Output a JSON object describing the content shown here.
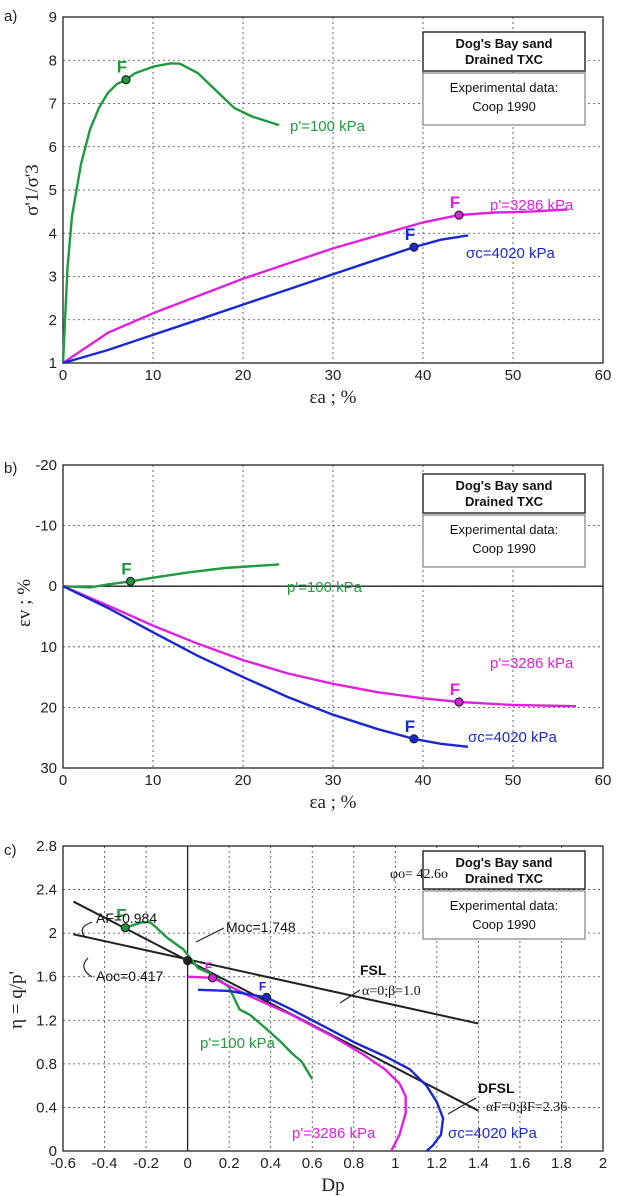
{
  "chart_data": [
    {
      "panel": "a)",
      "type": "line",
      "xlabel": "εa ; %",
      "ylabel": "σ'1/σ'3",
      "xlim": [
        0,
        60
      ],
      "ylim": [
        1,
        9
      ],
      "xticks": [
        0,
        10,
        20,
        30,
        40,
        50,
        60
      ],
      "yticks": [
        1,
        2,
        3,
        4,
        5,
        6,
        7,
        8,
        9
      ],
      "grid": true,
      "box_title": [
        "Dog's Bay sand",
        "Drained TXC"
      ],
      "box_sub": [
        "Experimental data:",
        "Coop 1990"
      ],
      "series": [
        {
          "name": "p'=100 kPa",
          "color": "#1f9a3e",
          "points": [
            [
              0,
              1
            ],
            [
              0.5,
              3.2
            ],
            [
              1,
              4.4
            ],
            [
              2,
              5.6
            ],
            [
              3,
              6.4
            ],
            [
              4,
              6.9
            ],
            [
              5,
              7.25
            ],
            [
              6,
              7.45
            ],
            [
              7,
              7.55
            ],
            [
              8,
              7.7
            ],
            [
              10,
              7.85
            ],
            [
              12,
              7.93
            ],
            [
              13,
              7.92
            ],
            [
              15,
              7.7
            ],
            [
              17,
              7.3
            ],
            [
              19,
              6.9
            ],
            [
              21,
              6.7
            ],
            [
              24,
              6.5
            ]
          ],
          "failure": [
            7,
            7.55
          ]
        },
        {
          "name": "p'=3286 kPa",
          "color": "#e020e0",
          "points": [
            [
              0,
              1
            ],
            [
              5,
              1.7
            ],
            [
              10,
              2.15
            ],
            [
              15,
              2.55
            ],
            [
              20,
              2.95
            ],
            [
              25,
              3.3
            ],
            [
              30,
              3.65
            ],
            [
              35,
              3.95
            ],
            [
              40,
              4.25
            ],
            [
              44,
              4.42
            ],
            [
              48,
              4.48
            ],
            [
              52,
              4.5
            ],
            [
              56,
              4.55
            ]
          ],
          "failure": [
            44,
            4.42
          ]
        },
        {
          "name": "σc=4020 kPa",
          "color": "#1a28d0",
          "points": [
            [
              0,
              1
            ],
            [
              5,
              1.3
            ],
            [
              10,
              1.65
            ],
            [
              15,
              2.0
            ],
            [
              20,
              2.35
            ],
            [
              25,
              2.7
            ],
            [
              30,
              3.05
            ],
            [
              35,
              3.4
            ],
            [
              39,
              3.68
            ],
            [
              42,
              3.85
            ],
            [
              45,
              3.95
            ]
          ],
          "failure": [
            39,
            3.68
          ]
        }
      ],
      "series_labels": [
        "p'=100 kPa",
        "p'=3286 kPa",
        "σc=4020 kPa"
      ]
    },
    {
      "panel": "b)",
      "type": "line",
      "xlabel": "εa ; %",
      "ylabel": "εv ; %",
      "xlim": [
        0,
        60
      ],
      "ylim": [
        -20,
        30
      ],
      "y_inverted": true,
      "xticks": [
        0,
        10,
        20,
        30,
        40,
        50,
        60
      ],
      "yticks": [
        -20,
        -10,
        0,
        10,
        20,
        30
      ],
      "grid": true,
      "box_title": [
        "Dog's Bay sand",
        "Drained TXC"
      ],
      "box_sub": [
        "Experimental data:",
        "Coop 1990"
      ],
      "series": [
        {
          "name": "p'=100 kPa",
          "color": "#1f9a3e",
          "points": [
            [
              0,
              0
            ],
            [
              3,
              0.2
            ],
            [
              5,
              -0.3
            ],
            [
              7.5,
              -0.8
            ],
            [
              10,
              -1.4
            ],
            [
              14,
              -2.3
            ],
            [
              18,
              -3.0
            ],
            [
              24,
              -3.6
            ]
          ],
          "failure": [
            7.5,
            -0.8
          ]
        },
        {
          "name": "p'=3286 kPa",
          "color": "#e020e0",
          "points": [
            [
              0,
              0
            ],
            [
              5,
              3.2
            ],
            [
              10,
              6.5
            ],
            [
              15,
              9.5
            ],
            [
              20,
              12.2
            ],
            [
              25,
              14.4
            ],
            [
              30,
              16.1
            ],
            [
              35,
              17.5
            ],
            [
              40,
              18.5
            ],
            [
              44,
              19.1
            ],
            [
              50,
              19.6
            ],
            [
              57,
              19.8
            ]
          ],
          "failure": [
            44,
            19.1
          ]
        },
        {
          "name": "σc=4020 kPa",
          "color": "#1a28d0",
          "points": [
            [
              0,
              0
            ],
            [
              5,
              3.6
            ],
            [
              10,
              7.6
            ],
            [
              15,
              11.5
            ],
            [
              20,
              15.0
            ],
            [
              25,
              18.3
            ],
            [
              30,
              21.2
            ],
            [
              35,
              23.6
            ],
            [
              39,
              25.2
            ],
            [
              42,
              26.0
            ],
            [
              45,
              26.5
            ]
          ],
          "failure": [
            39,
            25.2
          ]
        }
      ],
      "series_labels": [
        "p'=100 kPa",
        "p'=3286 kPa",
        "σc=4020 kPa"
      ]
    },
    {
      "panel": "c)",
      "type": "line",
      "xlabel": "Dp",
      "ylabel": "η = q/p'",
      "xlim": [
        -0.6,
        2.0
      ],
      "ylim": [
        0,
        2.8
      ],
      "xticks": [
        -0.6,
        -0.4,
        -0.2,
        0,
        0.2,
        0.4,
        0.6,
        0.8,
        1.0,
        1.2,
        1.4,
        1.6,
        1.8,
        2.0
      ],
      "yticks": [
        0,
        0.4,
        0.8,
        1.2,
        1.6,
        2.0,
        2.4,
        2.8
      ],
      "grid": true,
      "box_title": [
        "Dog's Bay sand",
        "Drained TXC"
      ],
      "box_sub": [
        "Experimental data:",
        "Coop 1990"
      ],
      "annotations": {
        "phi": "φo= 42.6o",
        "af": "AF=0.984",
        "ac": "Aoc=0.417",
        "mc": "Moc=1.748",
        "fsl": "FSL",
        "fsl_params": "α=0;β=1.0",
        "dfsl": "DFSL",
        "dfsl_params": "αF=0;βF=2.36"
      },
      "lines": [
        {
          "name": "FSL",
          "color": "#222222",
          "points": [
            [
              -0.55,
              1.99
            ],
            [
              1.4,
              1.17
            ]
          ]
        },
        {
          "name": "DFSL",
          "color": "#222222",
          "points": [
            [
              -0.55,
              2.29
            ],
            [
              1.4,
              0.37
            ]
          ]
        }
      ],
      "series": [
        {
          "name": "p'=100 kPa",
          "color": "#1f9a3e",
          "points": [
            [
              -0.3,
              2.05
            ],
            [
              -0.22,
              2.1
            ],
            [
              -0.18,
              2.1
            ],
            [
              -0.15,
              2.05
            ],
            [
              -0.1,
              1.96
            ],
            [
              -0.02,
              1.85
            ],
            [
              0.05,
              1.68
            ],
            [
              0.12,
              1.62
            ],
            [
              0.2,
              1.5
            ],
            [
              0.25,
              1.3
            ],
            [
              0.3,
              1.25
            ],
            [
              0.38,
              1.12
            ],
            [
              0.45,
              1.0
            ],
            [
              0.5,
              0.9
            ],
            [
              0.55,
              0.82
            ],
            [
              0.6,
              0.66
            ]
          ],
          "failure": [
            -0.3,
            2.05
          ]
        },
        {
          "name": "p'=3286 kPa",
          "color": "#e020e0",
          "points": [
            [
              0.0,
              1.6
            ],
            [
              0.12,
              1.59
            ],
            [
              0.3,
              1.42
            ],
            [
              0.5,
              1.25
            ],
            [
              0.7,
              1.05
            ],
            [
              0.85,
              0.88
            ],
            [
              0.95,
              0.75
            ],
            [
              1.02,
              0.62
            ],
            [
              1.05,
              0.5
            ],
            [
              1.05,
              0.35
            ],
            [
              1.02,
              0.15
            ],
            [
              0.98,
              0.0
            ]
          ],
          "failure": [
            0.12,
            1.59
          ]
        },
        {
          "name": "σc=4020 kPa",
          "color": "#1a28d0",
          "points": [
            [
              0.05,
              1.48
            ],
            [
              0.2,
              1.47
            ],
            [
              0.38,
              1.41
            ],
            [
              0.5,
              1.3
            ],
            [
              0.65,
              1.15
            ],
            [
              0.8,
              1.0
            ],
            [
              0.95,
              0.87
            ],
            [
              1.07,
              0.75
            ],
            [
              1.15,
              0.6
            ],
            [
              1.2,
              0.45
            ],
            [
              1.23,
              0.3
            ],
            [
              1.22,
              0.15
            ],
            [
              1.18,
              0.05
            ],
            [
              1.15,
              0.0
            ]
          ],
          "failure": [
            0.38,
            1.41
          ]
        },
        {
          "name": "",
          "color": "#222222",
          "points": [
            [
              0,
              1.748
            ]
          ],
          "failure": [
            0,
            1.748
          ]
        }
      ],
      "series_labels": [
        "p'=100 kPa",
        "p'=3286 kPa",
        "σc=4020 kPa"
      ]
    }
  ]
}
